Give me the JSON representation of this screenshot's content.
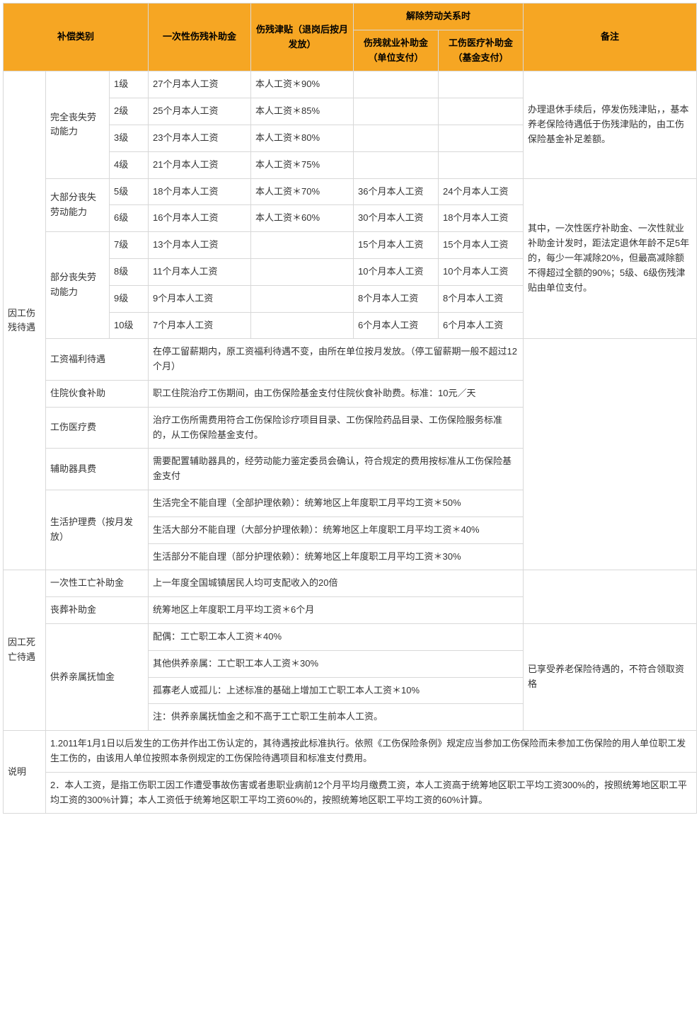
{
  "header": {
    "col_category": "补偿类别",
    "col_oneoff": "一次性伤残补助金",
    "col_allowance": "伤残津贴（退岗后按月发放）",
    "col_termination": "解除劳动关系时",
    "col_emp_sub": "伤残就业补助金（单位支付）",
    "col_med_sub": "工伤医疗补助金（基金支付）",
    "col_remark": "备注"
  },
  "group1": {
    "main": "因工伤残待遇",
    "sub_a": "完全丧失劳动能力",
    "sub_b": "大部分丧失劳动能力",
    "sub_c": "部分丧失劳动能力",
    "rows": [
      {
        "lv": "1级",
        "oneoff": "27个月本人工资",
        "allow": "本人工资＊90%",
        "emp": "",
        "med": ""
      },
      {
        "lv": "2级",
        "oneoff": "25个月本人工资",
        "allow": "本人工资＊85%",
        "emp": "",
        "med": ""
      },
      {
        "lv": "3级",
        "oneoff": "23个月本人工资",
        "allow": "本人工资＊80%",
        "emp": "",
        "med": ""
      },
      {
        "lv": "4级",
        "oneoff": "21个月本人工资",
        "allow": "本人工资＊75%",
        "emp": "",
        "med": ""
      },
      {
        "lv": "5级",
        "oneoff": "18个月本人工资",
        "allow": "本人工资＊70%",
        "emp": "36个月本人工资",
        "med": "24个月本人工资"
      },
      {
        "lv": "6级",
        "oneoff": "16个月本人工资",
        "allow": "本人工资＊60%",
        "emp": "30个月本人工资",
        "med": "18个月本人工资"
      },
      {
        "lv": "7级",
        "oneoff": "13个月本人工资",
        "allow": "",
        "emp": "15个月本人工资",
        "med": "15个月本人工资"
      },
      {
        "lv": "8级",
        "oneoff": "11个月本人工资",
        "allow": "",
        "emp": "10个月本人工资",
        "med": "10个月本人工资"
      },
      {
        "lv": "9级",
        "oneoff": "9个月本人工资",
        "allow": "",
        "emp": "8个月本人工资",
        "med": "8个月本人工资"
      },
      {
        "lv": "10级",
        "oneoff": "7个月本人工资",
        "allow": "",
        "emp": "6个月本人工资",
        "med": "6个月本人工资"
      }
    ],
    "remark_a": "办理退休手续后，停发伤残津贴，，基本养老保险待遇低于伤残津贴的，由工伤保险基金补足差额。",
    "remark_b": "其中，一次性医疗补助金、一次性就业补助金计发时，距法定退休年龄不足5年的，每少一年减除20%，但最高减除额不得超过全额的90%；5级、6级伤残津贴由单位支付。",
    "extras": [
      {
        "label": "工资福利待遇",
        "text": "在停工留薪期内，原工资福利待遇不变，由所在单位按月发放。（停工留薪期一般不超过12个月）"
      },
      {
        "label": "住院伙食补助",
        "text": "职工住院治疗工伤期间，由工伤保险基金支付住院伙食补助费。标准：10元／天"
      },
      {
        "label": "工伤医疗费",
        "text": "治疗工伤所需费用符合工伤保险诊疗项目目录、工伤保险药品目录、工伤保险服务标准的，从工伤保险基金支付。"
      },
      {
        "label": "辅助器具费",
        "text": "需要配置辅助器具的，经劳动能力鉴定委员会确认，符合规定的费用按标准从工伤保险基金支付"
      }
    ],
    "care_label": "生活护理费（按月发放）",
    "care": [
      "生活完全不能自理（全部护理依赖）：统筹地区上年度职工月平均工资＊50%",
      "生活大部分不能自理（大部分护理依赖）：统筹地区上年度职工月平均工资＊40%",
      "生活部分不能自理（部分护理依赖）：统筹地区上年度职工月平均工资＊30%"
    ]
  },
  "group2": {
    "main": "因工死亡待遇",
    "rows": [
      {
        "label": "一次性工亡补助金",
        "text": "上一年度全国城镇居民人均可支配收入的20倍"
      },
      {
        "label": "丧葬补助金",
        "text": "统筹地区上年度职工月平均工资＊6个月"
      }
    ],
    "dep_label": "供养亲属抚恤金",
    "dep": [
      "配偶：工亡职工本人工资＊40%",
      "其他供养亲属：工亡职工本人工资＊30%",
      "孤寡老人或孤儿：上述标准的基础上增加工亡职工本人工资＊10%",
      "注：供养亲属抚恤金之和不高于工亡职工生前本人工资。"
    ],
    "dep_remark": "已享受养老保险待遇的，不符合领取资格"
  },
  "notes": {
    "label": "说明",
    "n1": "1.2011年1月1日以后发生的工伤并作出工伤认定的，其待遇按此标准执行。依照《工伤保险条例》规定应当参加工伤保险而未参加工伤保险的用人单位职工发生工伤的，由该用人单位按照本条例规定的工伤保险待遇项目和标准支付费用。",
    "n2": "2．本人工资，是指工伤职工因工作遭受事故伤害或者患职业病前12个月平均月缴费工资，本人工资高于统筹地区职工平均工资300%的，按照统筹地区职工平均工资的300%计算；本人工资低于统筹地区职工平均工资60%的，按照统筹地区职工平均工资的60%计算。"
  },
  "colors": {
    "header_bg": "#f6a623",
    "border": "#d8d8d8"
  }
}
